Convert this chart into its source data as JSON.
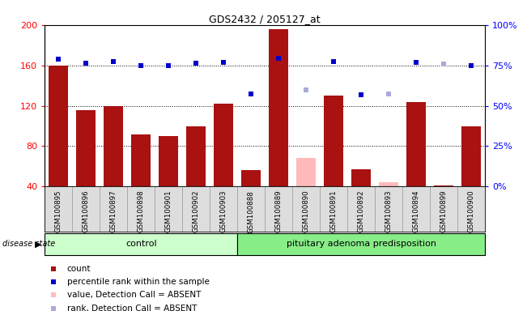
{
  "title": "GDS2432 / 205127_at",
  "samples": [
    "GSM100895",
    "GSM100896",
    "GSM100897",
    "GSM100898",
    "GSM100901",
    "GSM100902",
    "GSM100903",
    "GSM100888",
    "GSM100889",
    "GSM100890",
    "GSM100891",
    "GSM100892",
    "GSM100893",
    "GSM100894",
    "GSM100899",
    "GSM100900"
  ],
  "bar_values": [
    160,
    116,
    120,
    92,
    90,
    100,
    122,
    56,
    196,
    68,
    130,
    57,
    44,
    124,
    41,
    100
  ],
  "bar_absent": [
    false,
    false,
    false,
    false,
    false,
    false,
    false,
    false,
    false,
    true,
    false,
    false,
    true,
    false,
    false,
    false
  ],
  "dot_values": [
    166,
    162,
    164,
    160,
    160,
    162,
    163,
    132,
    167,
    136,
    164,
    131,
    132,
    163,
    161,
    160
  ],
  "dot_absent": [
    false,
    false,
    false,
    false,
    false,
    false,
    false,
    false,
    false,
    true,
    false,
    false,
    true,
    false,
    true,
    false
  ],
  "ylim_left": [
    40,
    200
  ],
  "yticks_left": [
    40,
    80,
    120,
    160,
    200
  ],
  "ytick_labels_left": [
    "40",
    "80",
    "120",
    "160",
    "200"
  ],
  "ytick_labels_right": [
    "0%",
    "25%",
    "50%",
    "75%",
    "100%"
  ],
  "bar_color_normal": "#aa1111",
  "bar_color_absent": "#ffbbbb",
  "dot_color_normal": "#0000cc",
  "dot_color_absent": "#aaaadd",
  "plot_bg": "#ffffff",
  "tick_area_bg": "#dddddd",
  "control_count": 7,
  "control_color": "#ccffcc",
  "pituitary_color": "#88ee88",
  "legend_items": [
    {
      "label": "count",
      "color": "#aa1111",
      "marker": "s"
    },
    {
      "label": "percentile rank within the sample",
      "color": "#0000cc",
      "marker": "s"
    },
    {
      "label": "value, Detection Call = ABSENT",
      "color": "#ffbbbb",
      "marker": "s"
    },
    {
      "label": "rank, Detection Call = ABSENT",
      "color": "#aaaadd",
      "marker": "s"
    }
  ]
}
